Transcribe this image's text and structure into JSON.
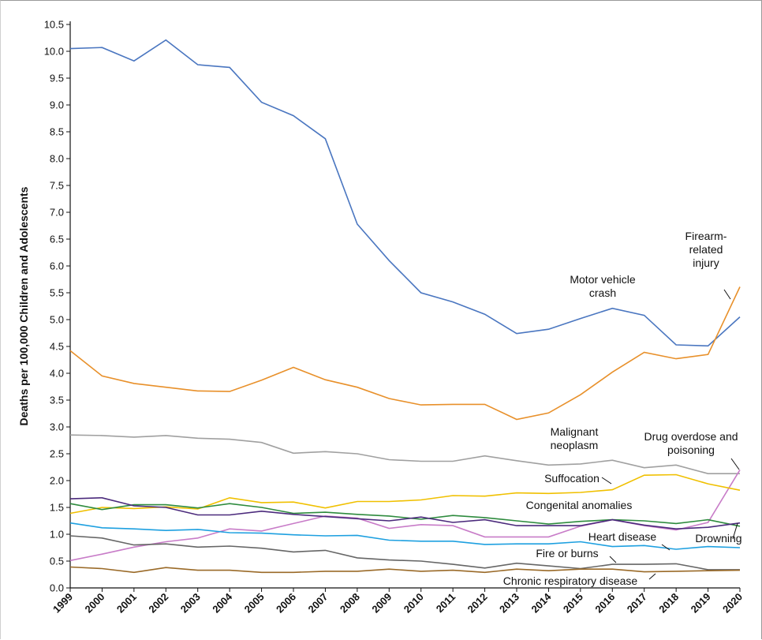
{
  "chart_data": {
    "type": "line",
    "y_label": "Deaths per 100,000 Children and Adolescents",
    "x": [
      1999,
      2000,
      2001,
      2002,
      2003,
      2004,
      2005,
      2006,
      2007,
      2008,
      2009,
      2010,
      2011,
      2012,
      2013,
      2014,
      2015,
      2016,
      2017,
      2018,
      2019,
      2020
    ],
    "xlim": [
      1999,
      2020
    ],
    "xticks": [
      1999,
      2000,
      2001,
      2002,
      2003,
      2004,
      2005,
      2006,
      2007,
      2008,
      2009,
      2010,
      2011,
      2012,
      2013,
      2014,
      2015,
      2016,
      2017,
      2018,
      2019,
      2020
    ],
    "ylim": [
      0,
      10.5
    ],
    "yticks": [
      {
        "value": 0,
        "label": "0.0"
      },
      0.5,
      {
        "value": 1,
        "label": "1.0"
      },
      1.5,
      {
        "value": 2,
        "label": "2.0"
      },
      2.5,
      {
        "value": 3,
        "label": "3.0"
      },
      3.5,
      {
        "value": 4,
        "label": "4.0"
      },
      4.5,
      {
        "value": 5,
        "label": "5.0"
      },
      5.5,
      {
        "value": 6,
        "label": "6.0"
      },
      6.5,
      {
        "value": 7,
        "label": "7.0"
      },
      7.5,
      {
        "value": 8,
        "label": "8.0"
      },
      8.5,
      {
        "value": 9,
        "label": "9.0"
      },
      9.5,
      {
        "value": 10,
        "label": "10.0"
      },
      10.5
    ],
    "grid": false,
    "series": [
      {
        "name": "Motor vehicle crash",
        "color": "#4a76c0",
        "values": [
          10.05,
          10.07,
          9.82,
          10.21,
          9.75,
          9.7,
          9.05,
          8.8,
          8.37,
          6.78,
          6.1,
          5.5,
          5.33,
          5.1,
          4.74,
          4.82,
          5.02,
          5.21,
          5.08,
          4.53,
          4.51,
          5.05
        ]
      },
      {
        "name": "Firearm-related injury",
        "color": "#e8902a",
        "values": [
          4.42,
          3.95,
          3.81,
          3.74,
          3.67,
          3.66,
          3.87,
          4.11,
          3.88,
          3.74,
          3.53,
          3.41,
          3.42,
          3.42,
          3.14,
          3.26,
          3.6,
          4.02,
          4.39,
          4.27,
          4.35,
          5.61
        ]
      },
      {
        "name": "Malignant neoplasm",
        "color": "#a0a0a0",
        "values": [
          2.85,
          2.84,
          2.81,
          2.84,
          2.79,
          2.77,
          2.71,
          2.51,
          2.54,
          2.5,
          2.39,
          2.36,
          2.36,
          2.46,
          2.37,
          2.29,
          2.31,
          2.38,
          2.24,
          2.29,
          2.13,
          2.13
        ]
      },
      {
        "name": "Drug overdose and poisoning",
        "color": "#c87cc8",
        "values": [
          0.51,
          0.63,
          0.76,
          0.86,
          0.93,
          1.1,
          1.06,
          1.2,
          1.34,
          1.3,
          1.11,
          1.18,
          1.16,
          0.95,
          0.95,
          0.95,
          1.15,
          1.27,
          1.16,
          1.08,
          1.22,
          2.2
        ]
      },
      {
        "name": "Suffocation",
        "color": "#f0c000",
        "values": [
          1.39,
          1.5,
          1.48,
          1.51,
          1.47,
          1.68,
          1.59,
          1.6,
          1.49,
          1.61,
          1.61,
          1.64,
          1.72,
          1.71,
          1.77,
          1.76,
          1.78,
          1.83,
          2.1,
          2.11,
          1.94,
          1.82
        ]
      },
      {
        "name": "Congenital anomalies",
        "color": "#2e8b3e",
        "values": [
          1.57,
          1.46,
          1.55,
          1.55,
          1.49,
          1.57,
          1.5,
          1.39,
          1.41,
          1.37,
          1.34,
          1.28,
          1.35,
          1.31,
          1.25,
          1.19,
          1.24,
          1.27,
          1.25,
          1.2,
          1.27,
          1.15
        ]
      },
      {
        "name": "Heart disease",
        "color": "#1ea0e0",
        "values": [
          1.21,
          1.12,
          1.1,
          1.07,
          1.09,
          1.03,
          1.02,
          0.99,
          0.97,
          0.98,
          0.89,
          0.87,
          0.87,
          0.81,
          0.82,
          0.82,
          0.86,
          0.77,
          0.79,
          0.72,
          0.77,
          0.75
        ]
      },
      {
        "name": "Drowning",
        "color": "#4b2a7c",
        "values": [
          1.66,
          1.68,
          1.53,
          1.5,
          1.36,
          1.36,
          1.43,
          1.37,
          1.33,
          1.29,
          1.25,
          1.32,
          1.22,
          1.27,
          1.16,
          1.16,
          1.16,
          1.27,
          1.17,
          1.1,
          1.13,
          1.21
        ]
      },
      {
        "name": "Fire or burns",
        "color": "#666666",
        "values": [
          0.97,
          0.93,
          0.8,
          0.82,
          0.76,
          0.78,
          0.74,
          0.67,
          0.7,
          0.56,
          0.52,
          0.5,
          0.44,
          0.37,
          0.46,
          0.41,
          0.36,
          0.44,
          0.44,
          0.45,
          0.34,
          0.34
        ]
      },
      {
        "name": "Chronic respiratory disease",
        "color": "#9a6a28",
        "values": [
          0.39,
          0.36,
          0.29,
          0.38,
          0.33,
          0.33,
          0.29,
          0.29,
          0.31,
          0.31,
          0.35,
          0.31,
          0.33,
          0.29,
          0.35,
          0.32,
          0.35,
          0.35,
          0.3,
          0.31,
          0.32,
          0.33
        ]
      }
    ]
  }
}
